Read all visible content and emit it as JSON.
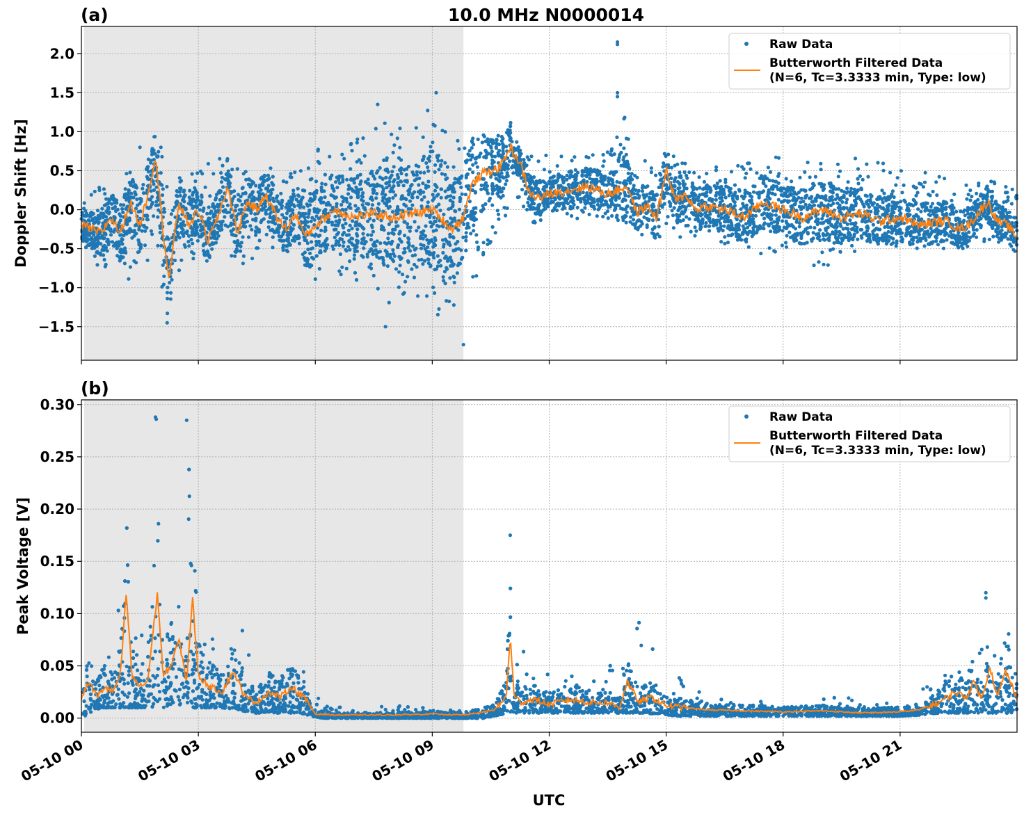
{
  "title": "10.0 MHz N0000014",
  "xlabel": "UTC",
  "colors": {
    "raw": "#1f77b4",
    "filtered": "#ff7f0e",
    "shade": "#e7e7e7",
    "grid": "#b0b0b0"
  },
  "chart_data": [
    {
      "type": "scatter",
      "panel_label": "(a)",
      "ylabel": "Doppler Shift [Hz]",
      "x_range_hours": [
        0,
        24
      ],
      "ylim": [
        -1.93,
        2.35
      ],
      "yticks": [
        -1.5,
        -1.0,
        -0.5,
        0.0,
        0.5,
        1.0,
        1.5,
        2.0
      ],
      "ytick_labels": [
        "−1.5",
        "−1.0",
        "−0.5",
        "0.0",
        "0.5",
        "1.0",
        "1.5",
        "2.0"
      ],
      "grid": true,
      "legend_placement": "top-right",
      "legend": {
        "raw": "Raw Data",
        "filtered_line1": "Butterworth Filtered Data",
        "filtered_line2": "(N=6, Tc=3.3333 min, Type: low)"
      },
      "shaded_region_hours": [
        0.07,
        9.8
      ],
      "series": [
        {
          "name": "Butterworth Filtered Data",
          "style": "line",
          "x_hours": [
            0.0,
            0.25,
            0.5,
            0.75,
            1.0,
            1.25,
            1.5,
            1.75,
            1.9,
            2.0,
            2.1,
            2.25,
            2.5,
            2.75,
            3.0,
            3.25,
            3.5,
            3.75,
            4.0,
            4.25,
            4.5,
            4.75,
            5.0,
            5.25,
            5.5,
            5.75,
            6.0,
            6.5,
            7.0,
            7.5,
            8.0,
            8.5,
            9.0,
            9.5,
            9.8,
            10.0,
            10.25,
            10.5,
            10.75,
            11.0,
            11.25,
            11.5,
            11.75,
            12.0,
            12.5,
            13.0,
            13.5,
            14.0,
            14.25,
            14.5,
            14.75,
            15.0,
            15.25,
            15.5,
            15.75,
            16.0,
            16.5,
            17.0,
            17.5,
            18.0,
            18.5,
            19.0,
            19.5,
            20.0,
            20.5,
            21.0,
            21.5,
            22.0,
            22.25,
            22.5,
            22.75,
            23.0,
            23.25,
            23.5,
            23.75,
            24.0
          ],
          "y_hz": [
            -0.2,
            -0.25,
            -0.3,
            -0.1,
            -0.3,
            0.1,
            -0.2,
            0.3,
            0.7,
            0.2,
            -0.3,
            -0.9,
            0.1,
            -0.2,
            0.0,
            -0.4,
            -0.1,
            0.3,
            -0.3,
            0.1,
            0.0,
            0.2,
            -0.1,
            -0.25,
            -0.05,
            -0.35,
            -0.2,
            0.0,
            -0.1,
            -0.05,
            -0.1,
            -0.05,
            0.0,
            -0.25,
            -0.1,
            0.3,
            0.45,
            0.5,
            0.55,
            0.8,
            0.6,
            0.2,
            0.15,
            0.2,
            0.25,
            0.3,
            0.2,
            0.3,
            -0.05,
            0.05,
            -0.1,
            0.5,
            0.1,
            0.2,
            0.0,
            0.05,
            0.0,
            -0.1,
            0.1,
            0.0,
            -0.1,
            0.0,
            -0.1,
            -0.05,
            -0.15,
            -0.1,
            -0.2,
            -0.15,
            -0.15,
            -0.25,
            -0.2,
            -0.05,
            0.1,
            -0.15,
            -0.2,
            -0.35
          ]
        },
        {
          "name": "Raw Data",
          "style": "markers",
          "x_hours": [
            0.0,
            0.5,
            0.8,
            1.2,
            1.5,
            1.8,
            1.95,
            2.0,
            2.2,
            2.3,
            2.7,
            3.0,
            3.5,
            4.0,
            4.6,
            5.0,
            5.5,
            5.9,
            6.1,
            6.5,
            7.0,
            7.5,
            8.0,
            8.5,
            8.9,
            9.3,
            9.6,
            9.8,
            10.1,
            10.4,
            10.7,
            11.0,
            11.2,
            11.6,
            12.0,
            12.6,
            13.2,
            13.7,
            13.8,
            14.2,
            14.6,
            15.0,
            15.5,
            16.0,
            16.8,
            17.3,
            18.0,
            18.7,
            19.2,
            19.6,
            20.0,
            20.6,
            21.2,
            21.8,
            22.3,
            22.8,
            23.3,
            23.8
          ],
          "y_low_hz": [
            -0.5,
            -0.8,
            -0.7,
            -0.9,
            -0.6,
            -0.7,
            -0.4,
            -1.0,
            -1.45,
            -1.0,
            -0.6,
            -0.7,
            -0.5,
            -0.8,
            -0.6,
            -0.5,
            -0.7,
            -1.1,
            -0.8,
            -1.0,
            -0.9,
            -1.0,
            -1.3,
            -1.2,
            -1.3,
            -1.4,
            -1.3,
            -1.1,
            -1.0,
            -0.5,
            -0.3,
            0.0,
            0.1,
            -0.2,
            -0.1,
            -0.1,
            -0.2,
            -0.1,
            -0.2,
            -0.3,
            -0.4,
            -0.4,
            -0.4,
            -0.4,
            -0.6,
            -0.7,
            -0.5,
            -0.7,
            -0.8,
            -0.6,
            -0.5,
            -0.5,
            -0.6,
            -0.5,
            -0.5,
            -0.5,
            -0.4,
            -0.5
          ],
          "y_high_hz": [
            0.2,
            0.3,
            0.5,
            0.6,
            0.8,
            0.9,
            0.85,
            0.9,
            0.5,
            0.5,
            0.6,
            0.5,
            0.7,
            0.6,
            0.6,
            0.7,
            0.5,
            0.6,
            0.8,
            0.7,
            0.9,
            1.1,
            1.2,
            1.0,
            1.4,
            1.5,
            1.0,
            0.9,
            1.2,
            1.0,
            1.1,
            1.2,
            0.8,
            0.7,
            0.7,
            0.8,
            0.7,
            0.9,
            1.5,
            0.7,
            0.6,
            0.8,
            0.6,
            0.6,
            0.6,
            0.6,
            0.7,
            0.7,
            0.6,
            0.6,
            0.7,
            0.6,
            0.5,
            0.5,
            0.4,
            0.3,
            0.4,
            0.3
          ],
          "outliers": [
            [
              13.75,
              2.15
            ],
            [
              13.75,
              2.12
            ],
            [
              13.75,
              1.5
            ],
            [
              13.75,
              1.45
            ],
            [
              9.8,
              -1.73
            ],
            [
              7.8,
              -1.5
            ],
            [
              7.6,
              1.35
            ],
            [
              9.1,
              1.5
            ],
            [
              2.2,
              -1.45
            ]
          ]
        }
      ]
    },
    {
      "type": "scatter",
      "panel_label": "(b)",
      "ylabel": "Peak Voltage [V]",
      "x_range_hours": [
        0,
        24
      ],
      "ylim": [
        -0.0135,
        0.3045
      ],
      "yticks": [
        0.0,
        0.05,
        0.1,
        0.15,
        0.2,
        0.25,
        0.3
      ],
      "ytick_labels": [
        "0.00",
        "0.05",
        "0.10",
        "0.15",
        "0.20",
        "0.25",
        "0.30"
      ],
      "xticks_hours": [
        0,
        3,
        6,
        9,
        12,
        15,
        18,
        21
      ],
      "xtick_labels": [
        "05-10 00",
        "05-10 03",
        "05-10 06",
        "05-10 09",
        "05-10 12",
        "05-10 15",
        "05-10 18",
        "05-10 21"
      ],
      "grid": true,
      "legend_placement": "top-right",
      "legend": {
        "raw": "Raw Data",
        "filtered_line1": "Butterworth Filtered Data",
        "filtered_line2": "(N=6, Tc=3.3333 min, Type: low)"
      },
      "shaded_region_hours": [
        0.07,
        9.8
      ],
      "series": [
        {
          "name": "Butterworth Filtered Data",
          "style": "line",
          "x_hours": [
            0.0,
            0.2,
            0.4,
            0.6,
            0.8,
            1.0,
            1.15,
            1.3,
            1.5,
            1.7,
            1.95,
            2.1,
            2.3,
            2.5,
            2.7,
            2.85,
            3.0,
            3.3,
            3.6,
            3.9,
            4.2,
            4.5,
            4.8,
            5.1,
            5.4,
            5.7,
            5.9,
            6.0,
            6.5,
            7.0,
            8.0,
            9.0,
            9.8,
            10.2,
            10.6,
            10.9,
            11.0,
            11.1,
            11.3,
            11.6,
            12.0,
            12.5,
            13.0,
            13.5,
            13.8,
            14.0,
            14.3,
            14.6,
            15.0,
            15.5,
            16.0,
            17.0,
            18.0,
            19.0,
            20.0,
            21.0,
            21.5,
            22.0,
            22.4,
            22.7,
            22.9,
            23.1,
            23.3,
            23.5,
            23.7,
            24.0
          ],
          "y_v": [
            0.02,
            0.035,
            0.02,
            0.03,
            0.025,
            0.04,
            0.12,
            0.04,
            0.03,
            0.035,
            0.12,
            0.04,
            0.05,
            0.075,
            0.035,
            0.115,
            0.04,
            0.03,
            0.025,
            0.045,
            0.02,
            0.015,
            0.025,
            0.02,
            0.03,
            0.02,
            0.01,
            0.004,
            0.003,
            0.003,
            0.003,
            0.004,
            0.003,
            0.005,
            0.008,
            0.02,
            0.08,
            0.02,
            0.015,
            0.018,
            0.013,
            0.018,
            0.015,
            0.015,
            0.01,
            0.035,
            0.015,
            0.02,
            0.012,
            0.01,
            0.008,
            0.007,
            0.006,
            0.007,
            0.005,
            0.006,
            0.008,
            0.015,
            0.025,
            0.02,
            0.035,
            0.018,
            0.05,
            0.02,
            0.045,
            0.02
          ]
        },
        {
          "name": "Raw Data",
          "style": "markers",
          "x_hours": [
            0.0,
            0.2,
            0.5,
            0.8,
            1.1,
            1.3,
            1.6,
            1.9,
            2.1,
            2.4,
            2.7,
            3.0,
            3.3,
            3.6,
            4.0,
            4.4,
            4.8,
            5.2,
            5.6,
            5.9,
            6.2,
            7.0,
            8.0,
            9.0,
            9.8,
            10.3,
            10.7,
            10.95,
            11.1,
            11.5,
            12.0,
            12.5,
            13.0,
            13.5,
            14.0,
            14.3,
            14.8,
            15.3,
            16.0,
            17.0,
            18.0,
            19.0,
            19.5,
            20.0,
            21.0,
            21.5,
            22.0,
            22.5,
            22.9,
            23.3,
            23.7,
            24.0
          ],
          "y_low_v": [
            0.0,
            0.005,
            0.01,
            0.01,
            0.01,
            0.01,
            0.01,
            0.01,
            0.01,
            0.015,
            0.01,
            0.01,
            0.01,
            0.01,
            0.008,
            0.005,
            0.005,
            0.005,
            0.005,
            0.002,
            0.0,
            0.0,
            0.0,
            0.0,
            0.0,
            0.0,
            0.003,
            0.005,
            0.005,
            0.005,
            0.005,
            0.005,
            0.005,
            0.005,
            0.005,
            0.005,
            0.004,
            0.002,
            0.002,
            0.002,
            0.002,
            0.002,
            0.002,
            0.002,
            0.002,
            0.003,
            0.005,
            0.005,
            0.005,
            0.005,
            0.005,
            0.005
          ],
          "y_high_v": [
            0.13,
            0.06,
            0.07,
            0.07,
            0.245,
            0.08,
            0.09,
            0.288,
            0.1,
            0.1,
            0.284,
            0.11,
            0.08,
            0.06,
            0.105,
            0.05,
            0.045,
            0.055,
            0.06,
            0.03,
            0.012,
            0.01,
            0.012,
            0.012,
            0.008,
            0.012,
            0.02,
            0.03,
            0.175,
            0.04,
            0.045,
            0.05,
            0.05,
            0.055,
            0.065,
            0.098,
            0.055,
            0.05,
            0.02,
            0.018,
            0.015,
            0.02,
            0.025,
            0.015,
            0.015,
            0.025,
            0.055,
            0.065,
            0.09,
            0.08,
            0.12,
            0.06
          ],
          "outliers": [
            [
              1.9,
              0.288
            ],
            [
              1.92,
              0.286
            ],
            [
              2.7,
              0.285
            ],
            [
              11.0,
              0.175
            ],
            [
              23.2,
              0.12
            ],
            [
              23.2,
              0.115
            ]
          ]
        }
      ]
    }
  ]
}
